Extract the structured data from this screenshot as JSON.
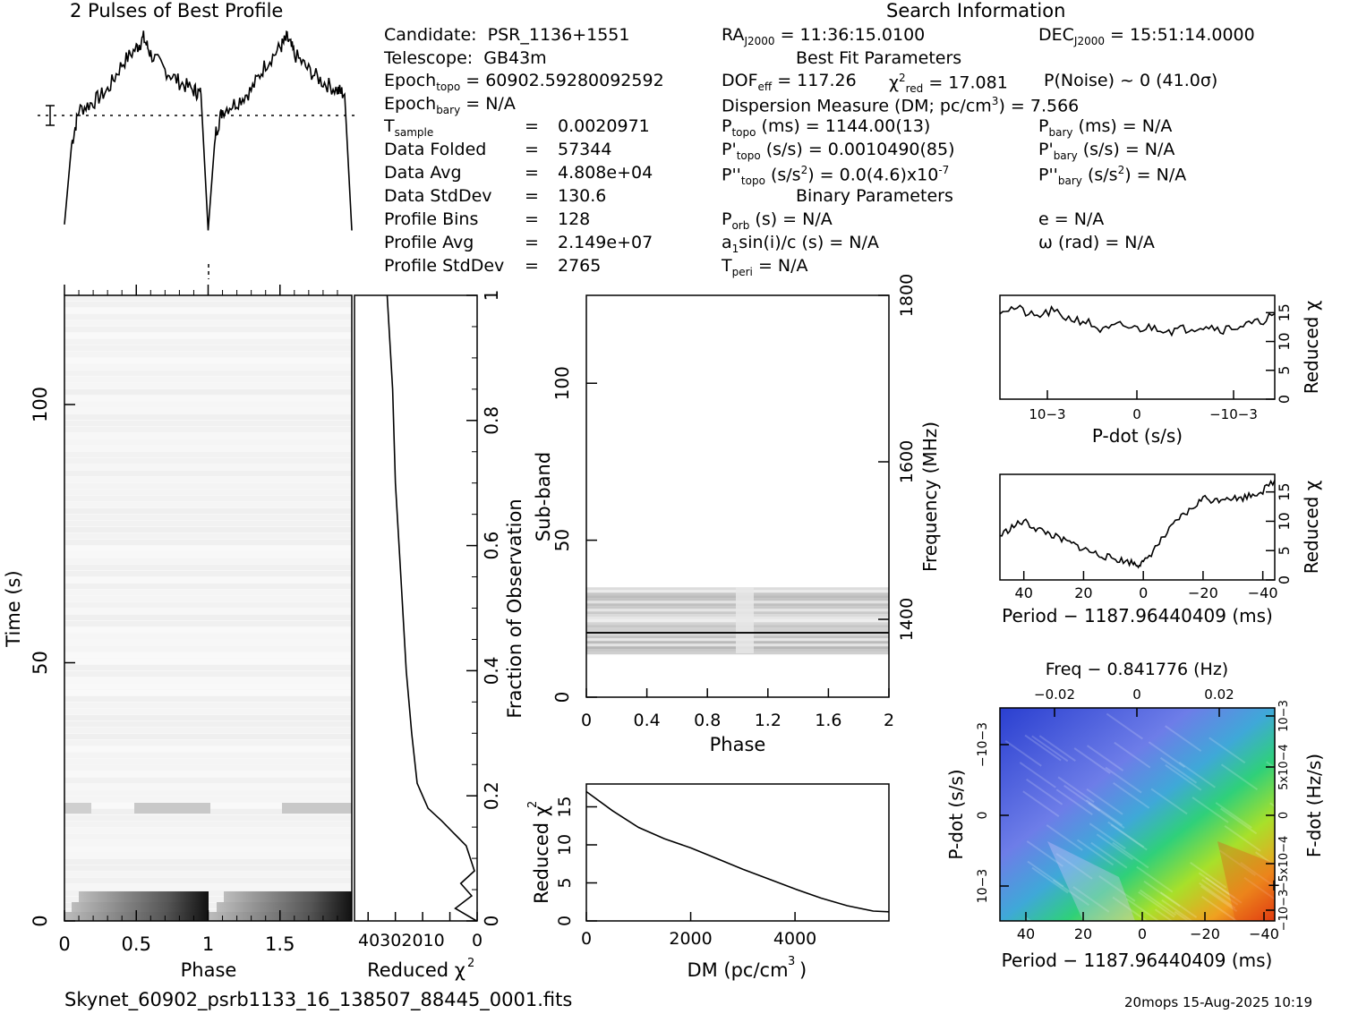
{
  "titles": {
    "profile": "2 Pulses of Best Profile",
    "search": "Search Information",
    "best_fit": "Best Fit Parameters",
    "binary": "Binary Parameters"
  },
  "info_left": [
    {
      "k": "Candidate:",
      "v": "PSR_1136+1551"
    },
    {
      "k": "Telescope:",
      "v": "GB43m"
    },
    {
      "k": "Epoch",
      "sub": "topo",
      "v": "= 60902.59280092592"
    },
    {
      "k": "Epoch",
      "sub": "bary",
      "v": "= N/A"
    },
    {
      "k": "T",
      "sub": "sample",
      "eq": "=",
      "v": "0.0020971"
    },
    {
      "k": "Data Folded",
      "eq": "=",
      "v": "57344"
    },
    {
      "k": "Data Avg",
      "eq": "=",
      "v": "4.808e+04"
    },
    {
      "k": "Data StdDev",
      "eq": "=",
      "v": "130.6"
    },
    {
      "k": "Profile Bins",
      "eq": "=",
      "v": "128"
    },
    {
      "k": "Profile Avg",
      "eq": "=",
      "v": "2.149e+07"
    },
    {
      "k": "Profile StdDev",
      "eq": "=",
      "v": "2765"
    }
  ],
  "search_info": {
    "ra": {
      "k": "RA",
      "sub": "J2000",
      "v": "= 11:36:15.0100"
    },
    "dec": {
      "k": "DEC",
      "sub": "J2000",
      "v": "= 15:51:14.0000"
    },
    "dof": {
      "k": "DOF",
      "sub": "eff",
      "v": "= 117.26"
    },
    "chi": {
      "k": "χ",
      "sup": "2",
      "sub": "red",
      "v": "= 17.081"
    },
    "pnoise": "P(Noise) ~ 0    (41.0σ)",
    "dm": "Dispersion Measure (DM; pc/cm",
    "dm_sup": "3",
    "dm_val": ") = 7.566",
    "ptopo": {
      "k": "P",
      "sub": "topo",
      "v": "(ms) =  1144.00(13)"
    },
    "pdtopo": {
      "k": "P'",
      "sub": "topo",
      "v": "(s/s) =  0.0010490(85)"
    },
    "pddtopo": {
      "k": "P''",
      "sub": "topo",
      "v": "(s/s",
      "sup": "2",
      "v2": ") = 0.0(4.6)x10",
      "sup2": "-7"
    },
    "pbary": {
      "k": "P",
      "sub": "bary",
      "v": "(ms) = N/A"
    },
    "pdbary": {
      "k": "P'",
      "sub": "bary",
      "v": "(s/s) = N/A"
    },
    "pddbary": {
      "k": "P''",
      "sub": "bary",
      "v": "(s/s",
      "sup": "2",
      "v2": ") = N/A"
    },
    "porb": {
      "k": "P",
      "sub": "orb",
      "v": "(s) = N/A"
    },
    "asini": {
      "k": "a",
      "sub": "1",
      "v": "sin(i)/c (s) = N/A"
    },
    "tperi": {
      "k": "T",
      "sub": "peri",
      "v": "= N/A"
    },
    "ecc": "e = N/A",
    "omega": "ω (rad) = N/A"
  },
  "footer": {
    "filename": "Skynet_60902_psrb1133_16_138507_88445_0001.fits",
    "stamp": "20mops 15-Aug-2025 10:19"
  },
  "chart_data": [
    {
      "type": "line",
      "title": "2 Pulses of Best Profile",
      "xlabel": "",
      "ylabel": "",
      "description": "Folded pulse profile repeated twice over phase 0-2",
      "x": [
        0.0,
        0.05,
        0.1,
        0.2,
        0.3,
        0.4,
        0.5,
        0.55,
        0.6,
        0.7,
        0.8,
        0.9,
        0.95,
        1.0,
        1.05,
        1.1,
        1.2,
        1.3,
        1.4,
        1.5,
        1.55,
        1.6,
        1.7,
        1.8,
        1.9,
        1.95,
        2.0
      ],
      "y": [
        0.05,
        0.45,
        0.62,
        0.66,
        0.72,
        0.85,
        0.93,
        0.98,
        0.9,
        0.82,
        0.76,
        0.72,
        0.7,
        0.02,
        0.5,
        0.62,
        0.66,
        0.72,
        0.85,
        0.93,
        0.98,
        0.9,
        0.82,
        0.76,
        0.72,
        0.7,
        0.02
      ]
    },
    {
      "type": "heatmap",
      "xlabel": "Phase",
      "ylabel": "Time (s)",
      "x_ticks": [
        "0",
        "0.5",
        "1",
        "1.5"
      ],
      "y_ticks": [
        "0",
        "50",
        "100"
      ],
      "xlim": [
        0,
        2
      ],
      "ylim": [
        0,
        120
      ]
    },
    {
      "type": "line",
      "xlabel": "Reduced χ2",
      "ylabel": "Fraction of Observation",
      "x_ticks": [
        "40",
        "30",
        "20",
        "10",
        "0"
      ],
      "y_ticks": [
        "0",
        "0.2",
        "0.4",
        "0.6",
        "0.8",
        "1"
      ],
      "x": [
        0.2,
        8,
        2,
        6,
        1,
        4,
        13,
        18,
        22,
        24,
        26,
        28,
        30,
        31,
        33
      ],
      "y": [
        0.0,
        0.02,
        0.04,
        0.06,
        0.08,
        0.12,
        0.16,
        0.18,
        0.22,
        0.3,
        0.4,
        0.55,
        0.7,
        0.85,
        1.0
      ]
    },
    {
      "type": "heatmap",
      "xlabel": "Phase",
      "ylabel": "Sub-band",
      "y2label": "Frequency (MHz)",
      "x_ticks": [
        "0",
        "0.4",
        "0.8",
        "1.2",
        "1.6",
        "2"
      ],
      "y_ticks": [
        "0",
        "50",
        "100"
      ],
      "y2_ticks": [
        "1400",
        "1600",
        "1800"
      ],
      "xlim": [
        0,
        2
      ],
      "ylim": [
        0,
        128
      ],
      "data_rows": [
        14,
        35
      ]
    },
    {
      "type": "line",
      "xlabel": "DM (pc/cm3)",
      "ylabel": "Reduced χ2",
      "x_ticks": [
        "0",
        "2000",
        "4000"
      ],
      "y_ticks": [
        "0",
        "5",
        "10",
        "15"
      ],
      "x": [
        0,
        500,
        1000,
        1500,
        2000,
        2500,
        3000,
        3500,
        4000,
        4500,
        5000,
        5500,
        5800
      ],
      "y": [
        17.0,
        14.5,
        12.3,
        10.8,
        9.6,
        8.2,
        6.8,
        5.5,
        4.2,
        3.0,
        2.0,
        1.3,
        1.2
      ],
      "xlim": [
        0,
        5800
      ],
      "ylim": [
        0,
        18
      ]
    },
    {
      "type": "line",
      "xlabel": "P-dot (s/s)",
      "ylabel": "Reduced χ2",
      "x_ticks": [
        "10−3",
        "0",
        "−10−3"
      ],
      "y_ticks": [
        "0",
        "5",
        "10",
        "15"
      ],
      "x": [
        1.6,
        1.4,
        1.2,
        1.0,
        0.8,
        0.6,
        0.4,
        0.2,
        0,
        -0.2,
        -0.4,
        -0.6,
        -0.8,
        -1.0,
        -1.2,
        -1.4,
        -1.6
      ],
      "y": [
        15.5,
        15.8,
        14.2,
        15.2,
        14.0,
        13.5,
        11.8,
        12.8,
        12.2,
        12.5,
        11.9,
        12.3,
        12.8,
        12.1,
        12.7,
        13.2,
        14.8
      ],
      "ylim": [
        0,
        18
      ]
    },
    {
      "type": "line",
      "xlabel": "Period − 1187.96440409 (ms)",
      "ylabel": "Reduced χ2",
      "x_ticks": [
        "40",
        "20",
        "0",
        "−20",
        "−40"
      ],
      "y_ticks": [
        "0",
        "5",
        "10",
        "15"
      ],
      "x": [
        48,
        44,
        40,
        36,
        32,
        28,
        24,
        20,
        16,
        12,
        8,
        4,
        2,
        0,
        -4,
        -8,
        -12,
        -16,
        -20,
        -24,
        -28,
        -32,
        -36,
        -40,
        -44
      ],
      "y": [
        7.5,
        9.0,
        10.0,
        8.8,
        8.0,
        7.0,
        6.2,
        5.3,
        4.5,
        3.9,
        3.4,
        3.0,
        2.7,
        2.8,
        5.5,
        8.0,
        10.5,
        12.0,
        14.0,
        13.5,
        14.2,
        13.8,
        14.5,
        15.2,
        17.0
      ],
      "xlim": [
        48,
        -44
      ],
      "ylim": [
        0,
        18
      ]
    },
    {
      "type": "heatmap",
      "title": "Freq − 0.841776 (Hz)",
      "xlabel": "Period − 1187.96440409 (ms)",
      "ylabel": "P-dot (s/s)",
      "y2label": "F-dot (Hz/s)",
      "x_ticks": [
        "40",
        "20",
        "0",
        "−20",
        "−40"
      ],
      "x2_ticks": [
        "−0.02",
        "0",
        "0.02"
      ],
      "y_ticks": [
        "−10−3",
        "0",
        "10−3"
      ],
      "y2_ticks": [
        "10−3",
        "5x10−4",
        "0",
        "−5x10−4",
        "−10−3"
      ]
    }
  ]
}
